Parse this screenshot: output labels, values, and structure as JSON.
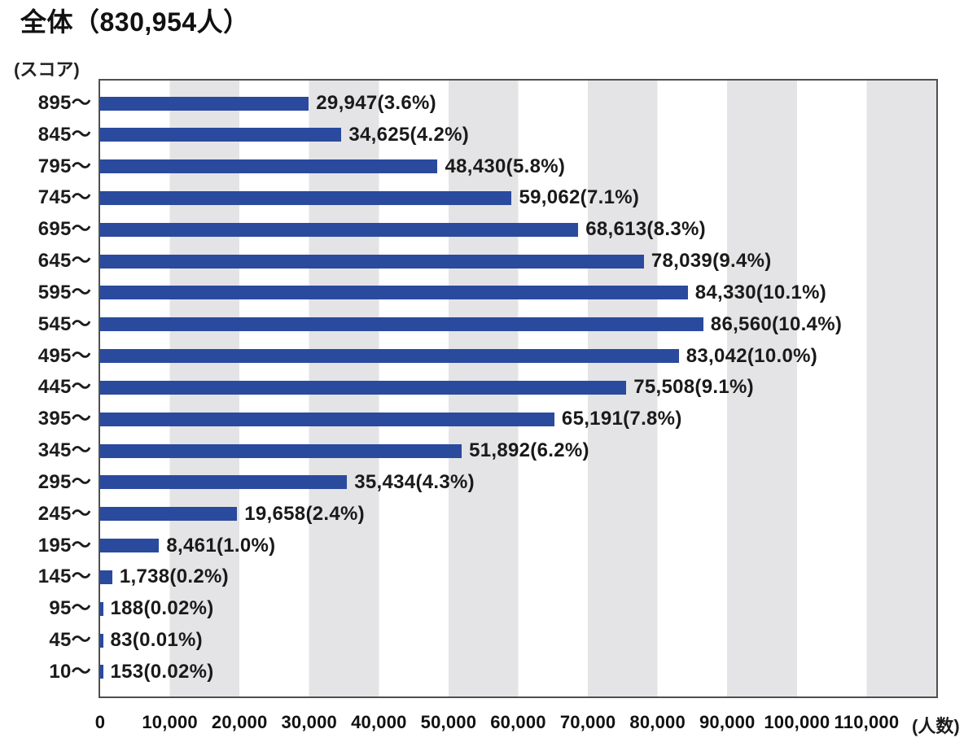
{
  "chart_data": {
    "type": "bar",
    "orientation": "horizontal",
    "title": "全体（830,954人）",
    "y_axis_unit": "(スコア)",
    "x_axis_unit": "(人数)",
    "categories": [
      "895〜",
      "845〜",
      "795〜",
      "745〜",
      "695〜",
      "645〜",
      "595〜",
      "545〜",
      "495〜",
      "445〜",
      "395〜",
      "345〜",
      "295〜",
      "245〜",
      "195〜",
      "145〜",
      "95〜",
      "45〜",
      "10〜"
    ],
    "values": [
      29947,
      34625,
      48430,
      59062,
      68613,
      78039,
      84330,
      86560,
      83042,
      75508,
      65191,
      51892,
      35434,
      19658,
      8461,
      1738,
      188,
      83,
      153
    ],
    "percent_labels": [
      "3.6%",
      "4.2%",
      "5.8%",
      "7.1%",
      "8.3%",
      "9.4%",
      "10.1%",
      "10.4%",
      "10.0%",
      "9.1%",
      "7.8%",
      "6.2%",
      "4.3%",
      "2.4%",
      "1.0%",
      "0.2%",
      "0.02%",
      "0.01%",
      "0.02%"
    ],
    "x_ticks": [
      "0",
      "10,000",
      "20,000",
      "30,000",
      "40,000",
      "50,000",
      "60,000",
      "70,000",
      "80,000",
      "90,000",
      "100,000",
      "110,000"
    ],
    "xlim": [
      0,
      120000
    ],
    "x_tick_interval": 10000,
    "grid": "alternating vertical bands every 10,000 (white / light gray)",
    "legend_position": "none"
  },
  "styles": {
    "bar_color": "#2a4a9e",
    "stripe_color": "#e4e4e6",
    "plot_border_color": "#4f4f4f",
    "text_color": "#1a1a1a",
    "background_color": "#ffffff"
  }
}
